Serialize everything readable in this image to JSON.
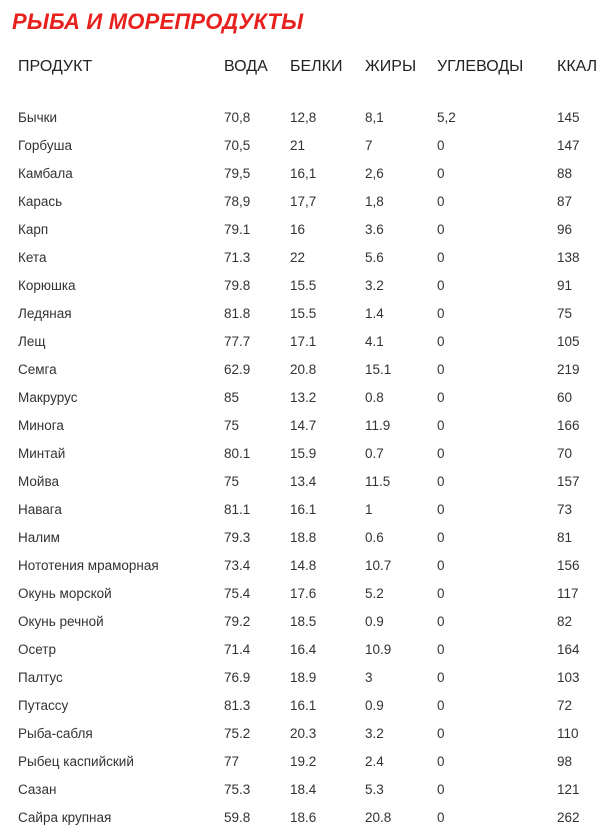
{
  "title": "РЫБА И МОРЕПРОДУКТЫ",
  "table": {
    "headers": [
      "ПРОДУКТ",
      "ВОДА",
      "БЕЛКИ",
      "ЖИРЫ",
      "УГЛЕВОДЫ",
      "ККАЛ"
    ],
    "rows": [
      [
        "Бычки",
        "70,8",
        "12,8",
        "8,1",
        "5,2",
        "145"
      ],
      [
        "Горбуша",
        "70,5",
        "21",
        "7",
        "0",
        "147"
      ],
      [
        "Камбала",
        "79,5",
        "16,1",
        "2,6",
        "0",
        "88"
      ],
      [
        "Карась",
        "78,9",
        "17,7",
        "1,8",
        "0",
        "87"
      ],
      [
        "Карп",
        "79.1",
        "16",
        "3.6",
        "0",
        "96"
      ],
      [
        "Кета",
        "71.3",
        "22",
        "5.6",
        "0",
        "138"
      ],
      [
        "Корюшка",
        "79.8",
        "15.5",
        "3.2",
        "0",
        "91"
      ],
      [
        "Ледяная",
        "81.8",
        "15.5",
        "1.4",
        "0",
        "75"
      ],
      [
        "Лещ",
        "77.7",
        "17.1",
        "4.1",
        "0",
        "105"
      ],
      [
        "Семга",
        "62.9",
        "20.8",
        "15.1",
        "0",
        "219"
      ],
      [
        "Макрурус",
        "85",
        "13.2",
        "0.8",
        "0",
        "60"
      ],
      [
        "Минога",
        "75",
        "14.7",
        "11.9",
        "0",
        "166"
      ],
      [
        "Минтай",
        "80.1",
        "15.9",
        "0.7",
        "0",
        "70"
      ],
      [
        "Мойва",
        "75",
        "13.4",
        "11.5",
        "0",
        "157"
      ],
      [
        "Навага",
        "81.1",
        "16.1",
        "1",
        "0",
        "73"
      ],
      [
        "Налим",
        "79.3",
        "18.8",
        "0.6",
        "0",
        "81"
      ],
      [
        "Нототения мраморная",
        "73.4",
        "14.8",
        "10.7",
        "0",
        "156"
      ],
      [
        "Окунь морской",
        "75.4",
        "17.6",
        "5.2",
        "0",
        "117"
      ],
      [
        "Окунь речной",
        "79.2",
        "18.5",
        "0.9",
        "0",
        "82"
      ],
      [
        "Осетр",
        "71.4",
        "16.4",
        "10.9",
        "0",
        "164"
      ],
      [
        "Палтус",
        "76.9",
        "18.9",
        "3",
        "0",
        "103"
      ],
      [
        "Путассу",
        "81.3",
        "16.1",
        "0.9",
        "0",
        "72"
      ],
      [
        "Рыба-сабля",
        "75.2",
        "20.3",
        "3.2",
        "0",
        "110"
      ],
      [
        "Рыбец каспийский",
        "77",
        "19.2",
        "2.4",
        "0",
        "98"
      ],
      [
        "Сазан",
        "75.3",
        "18.4",
        "5.3",
        "0",
        "121"
      ],
      [
        "Сайра крупная",
        "59.8",
        "18.6",
        "20.8",
        "0",
        "262"
      ]
    ]
  },
  "colors": {
    "title": "#e8201e",
    "text": "#333333"
  }
}
